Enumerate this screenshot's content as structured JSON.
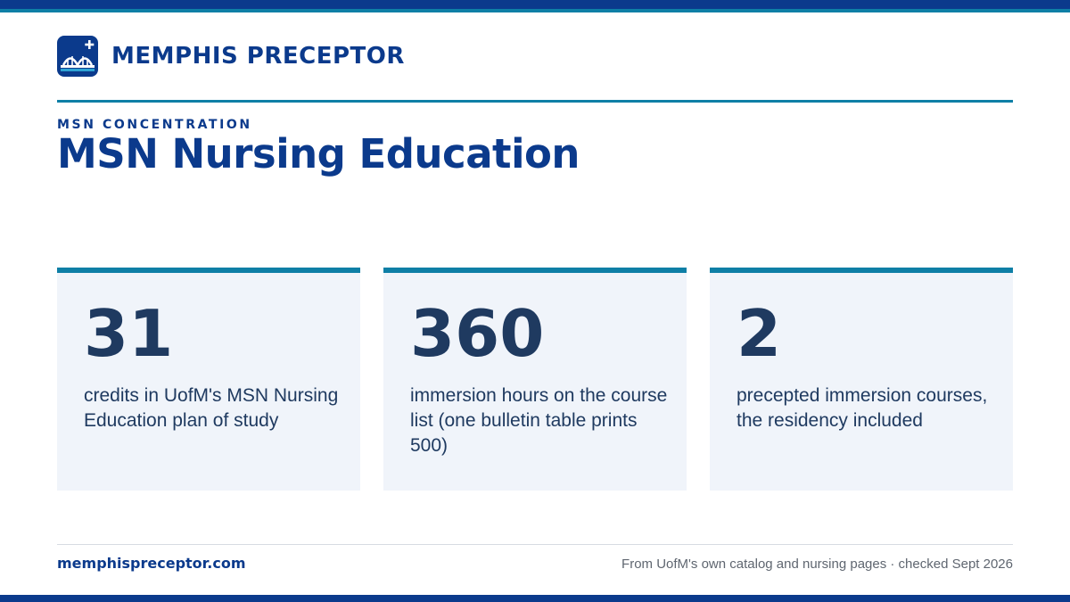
{
  "brand": {
    "name": "MEMPHIS PRECEPTOR",
    "logo_icon": "bridge-plus-icon"
  },
  "header": {
    "eyebrow": "MSN CONCENTRATION",
    "title": "MSN Nursing Education"
  },
  "stats": [
    {
      "value": "31",
      "description": "credits in UofM's MSN Nursing Education plan of study"
    },
    {
      "value": "360",
      "description": "immersion hours on the course list (one bulletin table prints 500)"
    },
    {
      "value": "2",
      "description": "precepted immersion courses, the residency included"
    }
  ],
  "footer": {
    "site": "memphispreceptor.com",
    "source": "From UofM's own catalog and nursing pages · checked Sept 2026"
  },
  "colors": {
    "brand_navy": "#0b3a8c",
    "accent_teal": "#0e7fa6",
    "card_background": "#f0f4fa",
    "stat_text": "#1f3a60"
  }
}
